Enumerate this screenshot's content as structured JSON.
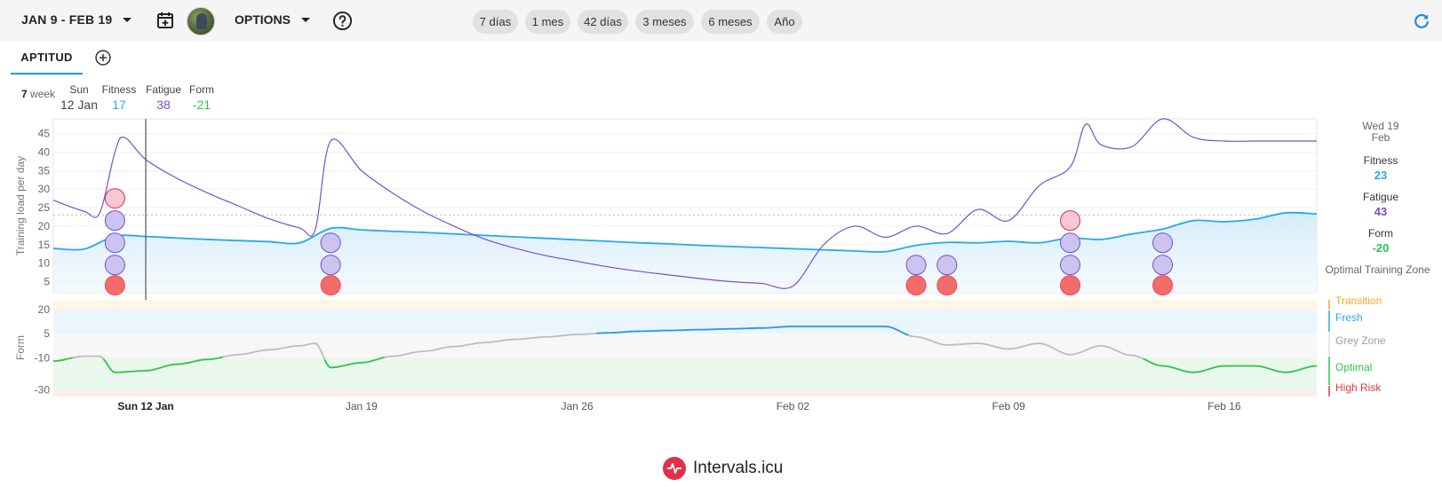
{
  "colors": {
    "fitness": "#29a9e6",
    "fatigue": "#7b4fcf",
    "form_green": "#2ec44a",
    "form_grey": "#bdbdbd",
    "form_blue": "#2196f3",
    "transition": "#f5a623",
    "fresh": "#29a9e6",
    "grey_zone": "#9e9e9e",
    "optimal": "#2ec44a",
    "high_risk": "#e53935",
    "brand": "#e0304a"
  },
  "toolbar": {
    "date_range": "JAN 9 - FEB 19",
    "options_label": "OPTIONS",
    "calendar_icon": "calendar-plus-icon",
    "help_icon": "help-circle-icon",
    "refresh_icon": "refresh-icon",
    "ranges": [
      "7 días",
      "1 mes",
      "42 días",
      "3 meses",
      "6 meses",
      "Año"
    ]
  },
  "tabs": {
    "active": "APTITUD",
    "add_icon": "add-circle-icon"
  },
  "summary": {
    "week_num": "7",
    "week_label": "week",
    "day_name": "Sun",
    "date": "12 Jan",
    "fitness_label": "Fitness",
    "fitness": "17",
    "fatigue_label": "Fatigue",
    "fatigue": "38",
    "form_label": "Form",
    "form": "-21"
  },
  "right_panel": {
    "date_line1": "Wed 19",
    "date_line2": "Feb",
    "fitness_label": "Fitness",
    "fitness": "23",
    "fatigue_label": "Fatigue",
    "fatigue": "43",
    "form_label": "Form",
    "form": "-20",
    "zone": "Optimal Training Zone"
  },
  "chart_data": [
    {
      "type": "line",
      "ylabel": "Training load per day",
      "ylim": [
        2,
        49
      ],
      "yticks": [
        5,
        10,
        15,
        20,
        25,
        30,
        35,
        40,
        45
      ],
      "x_range": [
        0,
        41
      ],
      "x_ticks": [
        {
          "day": 3,
          "label": "Sun 12 Jan"
        },
        {
          "day": 10,
          "label": "Jan 19"
        },
        {
          "day": 17,
          "label": "Jan 26"
        },
        {
          "day": 24,
          "label": "Feb 02"
        },
        {
          "day": 31,
          "label": "Feb 09"
        },
        {
          "day": 38,
          "label": "Feb 16"
        }
      ],
      "cursor_day": 3,
      "reference_line": 23,
      "series": [
        {
          "name": "Fitness",
          "x": [
            0,
            1,
            2,
            3,
            4,
            5,
            6,
            7,
            8,
            9,
            10,
            11,
            12,
            13,
            14,
            15,
            16,
            17,
            18,
            19,
            20,
            21,
            22,
            23,
            24,
            25,
            26,
            27,
            28,
            29,
            30,
            31,
            32,
            33,
            34,
            35,
            36,
            37,
            38,
            39,
            40,
            41
          ],
          "values": [
            14,
            13.8,
            17.3,
            17.2,
            16.8,
            16.4,
            16.1,
            15.8,
            15.5,
            19.4,
            19.0,
            18.6,
            18.3,
            17.9,
            17.5,
            17.1,
            16.7,
            16.3,
            15.9,
            15.5,
            15.2,
            14.8,
            14.5,
            14.2,
            13.9,
            13.6,
            13.3,
            13.1,
            14.8,
            15.6,
            15.5,
            15.9,
            15.5,
            16.8,
            16.4,
            17.9,
            19.2,
            21.5,
            21.2,
            21.9,
            23.6,
            23.3
          ]
        },
        {
          "name": "Fatigue",
          "x": [
            0,
            1,
            1.5,
            2,
            2.3,
            3,
            4,
            5,
            6,
            7,
            8,
            8.5,
            9,
            10,
            11,
            12,
            13,
            14,
            15,
            16,
            17,
            18,
            19,
            20,
            21,
            22,
            23,
            24,
            25,
            26,
            27,
            28,
            29,
            30,
            31,
            32,
            33,
            33.5,
            34,
            35,
            36,
            37,
            38,
            39,
            40,
            41
          ],
          "values": [
            27,
            24,
            23.5,
            40,
            44,
            38,
            33,
            29,
            25.5,
            22,
            19.5,
            19,
            43,
            35,
            29,
            24,
            20,
            16.5,
            14,
            12,
            10.5,
            9,
            7.8,
            6.8,
            5.8,
            5,
            4.5,
            3.8,
            15,
            20,
            17,
            20,
            18,
            24.5,
            21.5,
            31,
            36,
            47.5,
            42,
            41.5,
            49.5,
            44,
            43,
            43,
            43,
            43
          ]
        }
      ],
      "activities": [
        {
          "day": 2,
          "stack": [
            [
              "red",
              4
            ],
            [
              "purple",
              9.5
            ],
            [
              "purple",
              15.5
            ],
            [
              "purple",
              21.5
            ],
            [
              "pink",
              27.5
            ]
          ]
        },
        {
          "day": 9,
          "stack": [
            [
              "red",
              4
            ],
            [
              "purple",
              9.5
            ],
            [
              "purple",
              15.5
            ]
          ]
        },
        {
          "day": 28,
          "stack": [
            [
              "red",
              4
            ],
            [
              "purple",
              9.5
            ]
          ]
        },
        {
          "day": 29,
          "stack": [
            [
              "red",
              4
            ],
            [
              "purple",
              9.5
            ]
          ]
        },
        {
          "day": 33,
          "stack": [
            [
              "red",
              4
            ],
            [
              "purple",
              9.5
            ],
            [
              "purple",
              15.5
            ],
            [
              "pink",
              21.5
            ]
          ]
        },
        {
          "day": 36,
          "stack": [
            [
              "red",
              4
            ],
            [
              "purple",
              9.5
            ],
            [
              "purple",
              15.5
            ]
          ]
        }
      ]
    },
    {
      "type": "line",
      "ylabel": "Form",
      "ylim": [
        -34,
        26
      ],
      "yticks": [
        20,
        5,
        -10,
        -30
      ],
      "zones": [
        {
          "name": "Transition",
          "from": 20,
          "to": 26
        },
        {
          "name": "Fresh",
          "from": 5,
          "to": 20
        },
        {
          "name": "Grey Zone",
          "from": -10,
          "to": 5
        },
        {
          "name": "Optimal",
          "from": -30,
          "to": -10
        },
        {
          "name": "High Risk",
          "from": -34,
          "to": -30
        }
      ],
      "series": [
        {
          "name": "Form",
          "x": [
            0,
            1,
            1.5,
            2,
            3,
            4,
            5,
            6,
            7,
            8,
            8.5,
            9,
            10,
            11,
            12,
            13,
            14,
            15,
            16,
            17,
            18,
            19,
            20,
            21,
            22,
            23,
            24,
            25,
            26,
            27,
            28,
            29,
            30,
            31,
            32,
            33,
            34,
            35,
            36,
            37,
            38,
            39,
            40,
            41
          ],
          "values": [
            -12,
            -9,
            -9,
            -19,
            -18,
            -14,
            -11,
            -8,
            -5,
            -2.5,
            -1,
            -16,
            -13,
            -9,
            -6,
            -3,
            -0.5,
            1.5,
            3,
            4.5,
            5.5,
            6.5,
            7,
            7.5,
            8,
            8.5,
            9.5,
            9.5,
            9.5,
            9.5,
            3,
            -2,
            -1,
            -4.5,
            -1,
            -8,
            -2.5,
            -8.5,
            -15,
            -19,
            -15,
            -15,
            -19,
            -15
          ]
        }
      ]
    }
  ],
  "legend": {
    "transition": "Transition",
    "fresh": "Fresh",
    "grey_zone": "Grey Zone",
    "optimal": "Optimal",
    "high_risk": "High Risk"
  },
  "footer": {
    "brand": "Intervals.icu",
    "logo_icon": "pulse-logo-icon"
  }
}
